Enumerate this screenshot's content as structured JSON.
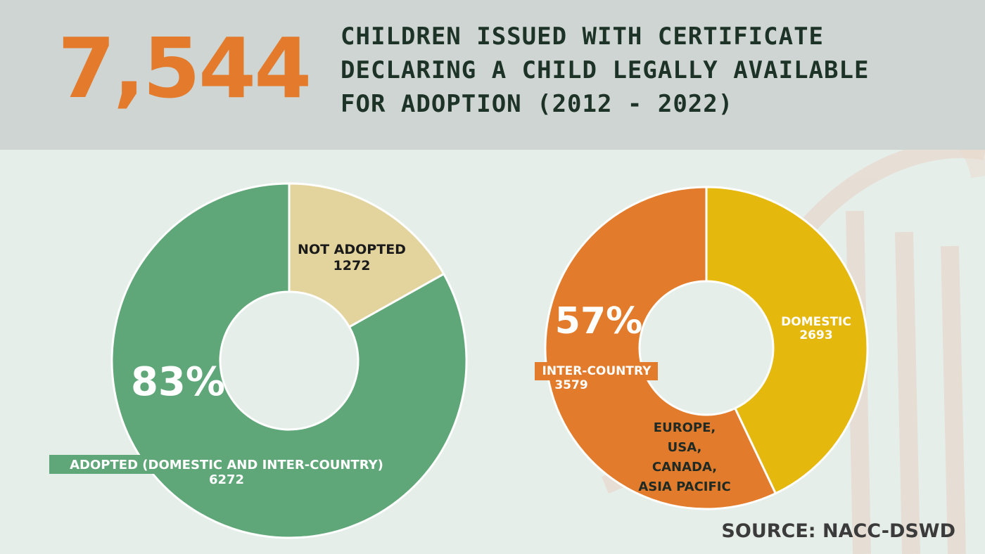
{
  "headline": {
    "number": "7,544",
    "title_lines": [
      "CHILDREN ISSUED WITH CERTIFICATE",
      "DECLARING A CHILD LEGALLY AVAILABLE",
      "FOR ADOPTION (2012 - 2022)"
    ]
  },
  "source": "SOURCE: NACC-DSWD",
  "colors": {
    "adopted": "#5fa779",
    "not_adopted": "#e3d39c",
    "inter_country": "#e27b2b",
    "domestic": "#e5b80d",
    "number_accent": "#e47b2c",
    "title_text": "#1d3327"
  },
  "chart_data": [
    {
      "type": "pie",
      "style": "donut",
      "series": [
        {
          "label": "ADOPTED (DOMESTIC AND INTER-COUNTRY)",
          "value": 6272,
          "color": "#5fa779"
        },
        {
          "label": "NOT ADOPTED",
          "value": 1272,
          "color": "#e3d39c"
        }
      ],
      "percent_label": "83%"
    },
    {
      "type": "pie",
      "style": "donut",
      "series": [
        {
          "label": "DOMESTIC",
          "value": 2693,
          "color": "#e5b80d"
        },
        {
          "label": "INTER-COUNTRY",
          "value": 3579,
          "color": "#e27b2b"
        }
      ],
      "percent_label": "57%",
      "annotation": [
        "EUROPE,",
        "USA,",
        "CANADA,",
        "ASIA PACIFIC"
      ]
    }
  ]
}
